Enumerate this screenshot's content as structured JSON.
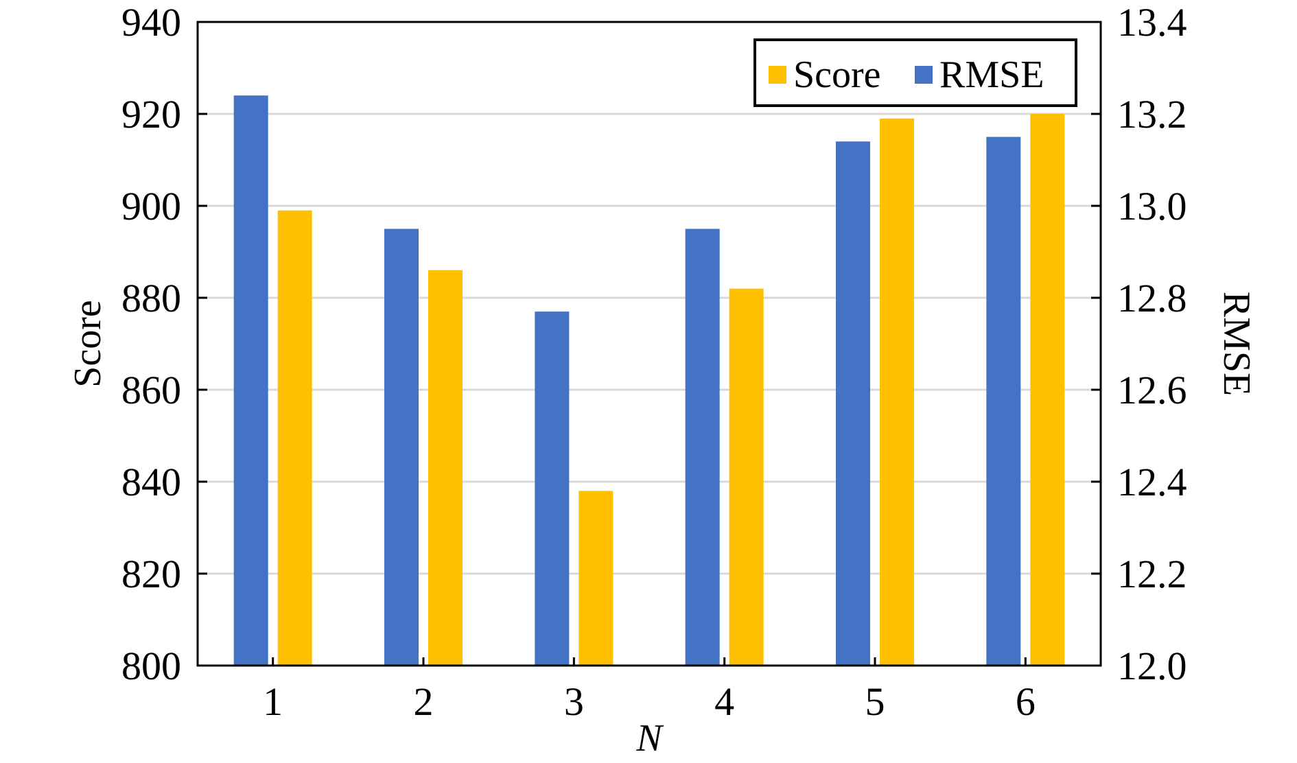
{
  "chart_data": {
    "type": "bar",
    "categories": [
      "1",
      "2",
      "3",
      "4",
      "5",
      "6"
    ],
    "xlabel": "N",
    "ylabel_left": "Score",
    "ylabel_right": "RMSE",
    "left_axis": {
      "range": [
        800,
        940
      ],
      "ticks": [
        "800",
        "820",
        "840",
        "860",
        "880",
        "900",
        "920",
        "940"
      ]
    },
    "right_axis": {
      "range": [
        12.0,
        13.4
      ],
      "ticks": [
        "12.0",
        "12.2",
        "12.4",
        "12.6",
        "12.8",
        "13.0",
        "13.2",
        "13.4"
      ]
    },
    "grid": true,
    "legend_position": "top-right",
    "series": [
      {
        "name": "RMSE",
        "axis": "right",
        "color": "#4472C4",
        "values": [
          13.24,
          12.95,
          12.77,
          12.95,
          13.14,
          13.15
        ]
      },
      {
        "name": "Score",
        "axis": "left",
        "color": "#FFC000",
        "values": [
          899,
          886,
          838,
          882,
          919,
          920
        ]
      }
    ],
    "legend": [
      "Score",
      "RMSE"
    ]
  }
}
